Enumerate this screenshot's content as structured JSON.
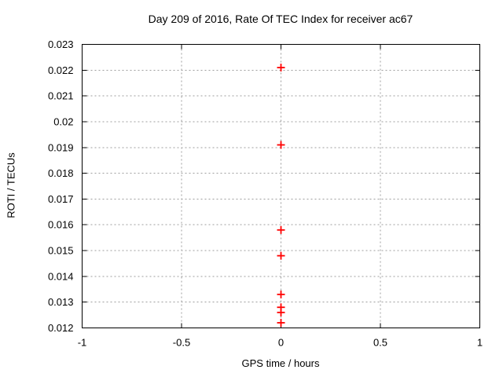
{
  "chart_data": {
    "type": "scatter",
    "title": "Day 209 of 2016, Rate Of TEC Index for receiver ac67",
    "xlabel": "GPS time / hours",
    "ylabel": "ROTI / TECUs",
    "xlim": [
      -1,
      1
    ],
    "ylim": [
      0.012,
      0.023
    ],
    "xticks": [
      -1,
      -0.5,
      0,
      0.5,
      1
    ],
    "xtick_labels": [
      "-1",
      "-0.5",
      "0",
      "0.5",
      "1"
    ],
    "yticks": [
      0.012,
      0.013,
      0.014,
      0.015,
      0.016,
      0.017,
      0.018,
      0.019,
      0.02,
      0.021,
      0.022,
      0.023
    ],
    "ytick_labels": [
      "0.012",
      "0.013",
      "0.014",
      "0.015",
      "0.016",
      "0.017",
      "0.018",
      "0.019",
      "0.02",
      "0.021",
      "0.022",
      "0.023"
    ],
    "grid": true,
    "legend": "none",
    "marker": "plus",
    "colors": {
      "marker": "#ff0000",
      "grid": "#9e9e9e",
      "axis": "#000000",
      "text": "#000000",
      "background": "#ffffff"
    },
    "series": [
      {
        "name": "ROTI",
        "x": [
          0,
          0,
          0,
          0,
          0,
          0,
          0,
          0
        ],
        "y": [
          0.0221,
          0.0191,
          0.0158,
          0.0148,
          0.0133,
          0.0128,
          0.0126,
          0.0122
        ]
      }
    ]
  }
}
